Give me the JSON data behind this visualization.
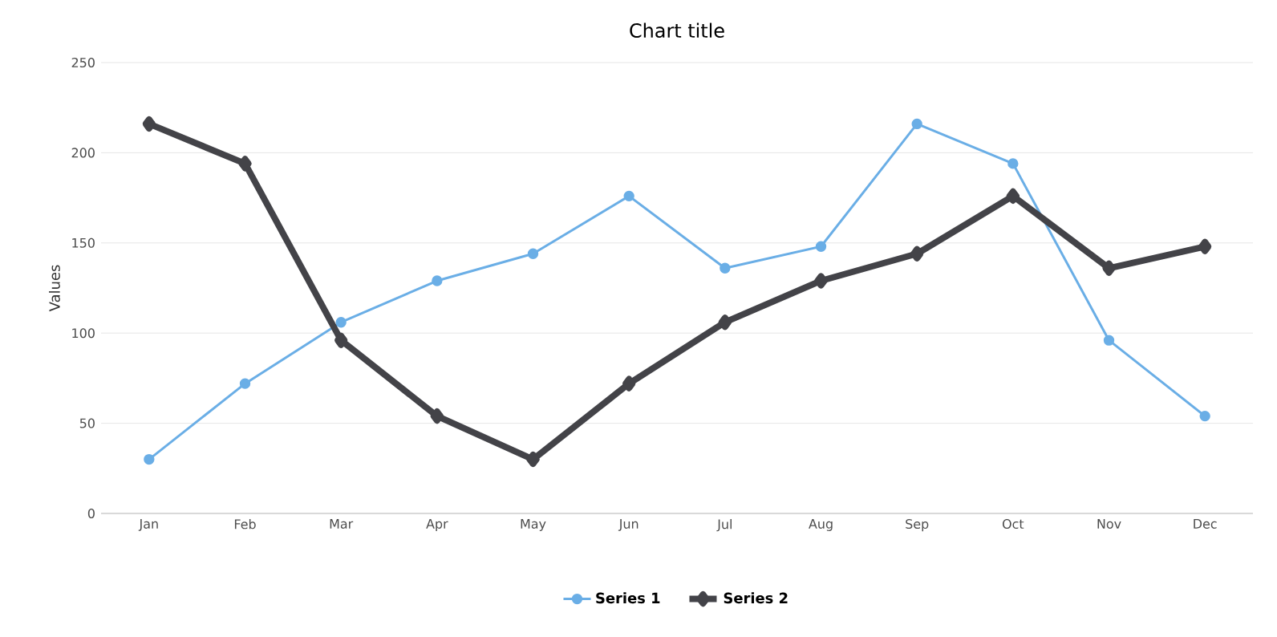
{
  "chart_data": {
    "type": "line",
    "title": "Chart title",
    "ylabel": "Values",
    "categories": [
      "Jan",
      "Feb",
      "Mar",
      "Apr",
      "May",
      "Jun",
      "Jul",
      "Aug",
      "Sep",
      "Oct",
      "Nov",
      "Dec"
    ],
    "series": [
      {
        "name": "Series 1",
        "color": "#6aaee6",
        "marker": "circle",
        "values": [
          30,
          72,
          106,
          129,
          144,
          176,
          136,
          148,
          216,
          194,
          96,
          54
        ]
      },
      {
        "name": "Series 2",
        "color": "#434348",
        "marker": "diamond",
        "values": [
          216,
          194,
          96,
          54,
          30,
          72,
          106,
          129,
          144,
          176,
          136,
          148
        ]
      }
    ],
    "ylim": [
      0,
      250
    ],
    "yticks": [
      0,
      50,
      100,
      150,
      200,
      250
    ],
    "grid": "y",
    "legend": "bottom"
  }
}
